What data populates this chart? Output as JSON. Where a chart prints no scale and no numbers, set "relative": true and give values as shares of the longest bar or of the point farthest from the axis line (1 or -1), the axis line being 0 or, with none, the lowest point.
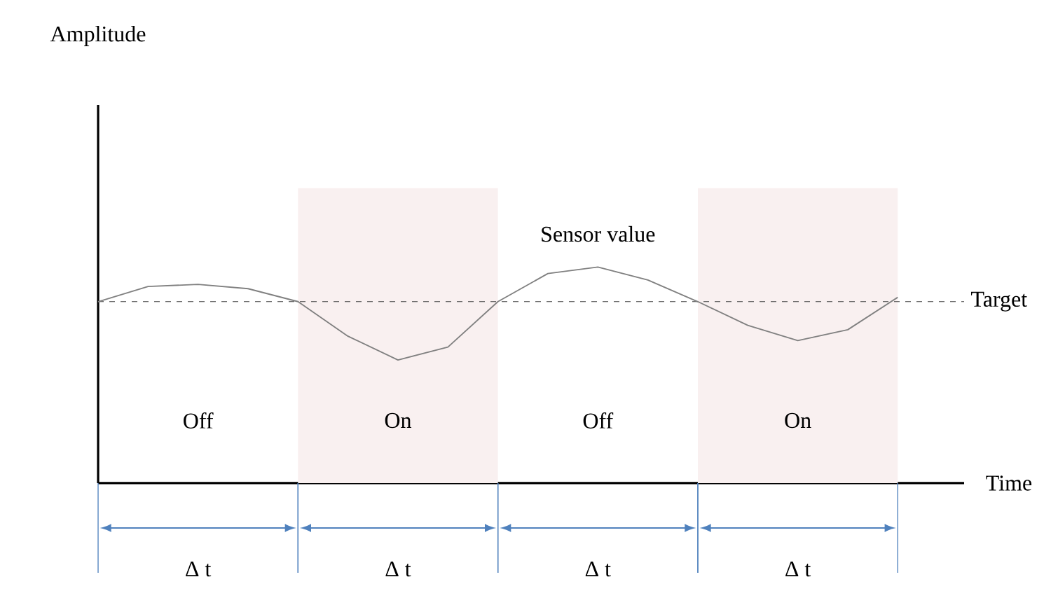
{
  "chart_data": {
    "type": "line",
    "relative": true,
    "xlabel": "Time",
    "marker": "none",
    "line_style": "solid",
    "categories": [
      null,
      null,
      null,
      null,
      null,
      null,
      null,
      null,
      null,
      null,
      null,
      null,
      null,
      null,
      null,
      null,
      null
    ],
    "series": [
      {
        "color": "#808080",
        "values": [
          0.84,
          0.91,
          0.92,
          0.9,
          0.84,
          0.68,
          0.57,
          0.63,
          0.84,
          0.97,
          1.0,
          0.94,
          0.84,
          0.73,
          0.66,
          0.71,
          0.86
        ]
      }
    ],
    "ref_lines": [
      {
        "axis": "y",
        "value": 0.84,
        "label": "Target",
        "color": "#404040",
        "line_style": "dashed"
      }
    ],
    "annotations": [
      "Sensor value",
      "Off",
      "On",
      "Off",
      "On",
      "Δ t",
      "Δ t",
      "Δ t",
      "Δ t",
      "Amplitude"
    ]
  }
}
